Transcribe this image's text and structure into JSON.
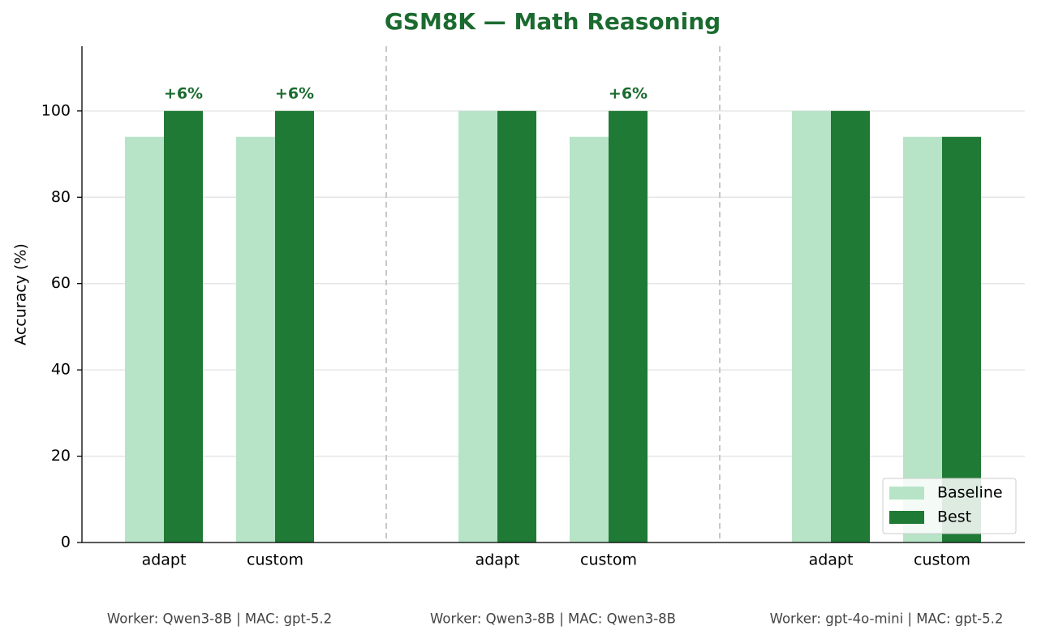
{
  "chart_data": {
    "type": "bar",
    "title": "GSM8K — Math Reasoning",
    "y_label": "Accuracy (%)",
    "groups": [
      {
        "label": "Worker: Qwen3-8B  |  MAC: gpt-5.2",
        "categories": [
          "adapt",
          "custom"
        ]
      },
      {
        "label": "Worker: Qwen3-8B  |  MAC: Qwen3-8B",
        "categories": [
          "adapt",
          "custom"
        ]
      },
      {
        "label": "Worker: gpt-4o-mini  |  MAC: gpt-5.2",
        "categories": [
          "adapt",
          "custom"
        ]
      }
    ],
    "series": [
      {
        "name": "Baseline",
        "color": "#b7e4c7",
        "values": [
          94,
          94,
          100,
          94,
          100,
          94
        ]
      },
      {
        "name": "Best",
        "color": "#1f7a35",
        "values": [
          100,
          100,
          100,
          100,
          100,
          94
        ],
        "annotations": [
          "+6%",
          "+6%",
          null,
          "+6%",
          null,
          null
        ]
      }
    ],
    "ylim": [
      0,
      115
    ],
    "yticks": [
      0,
      20,
      40,
      60,
      80,
      100
    ],
    "grid": true,
    "legend": "lower right"
  }
}
